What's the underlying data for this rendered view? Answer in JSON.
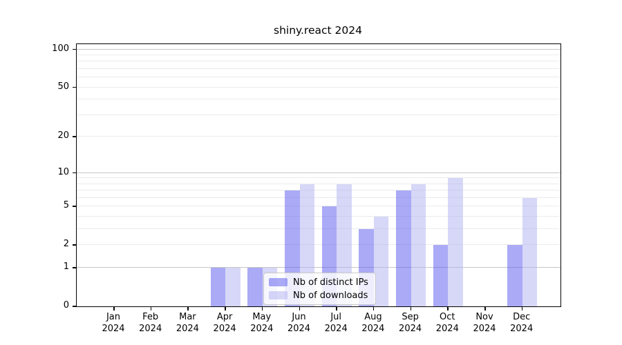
{
  "title": "shiny.react 2024",
  "chart_data": {
    "type": "bar",
    "title": "shiny.react 2024",
    "xlabel": "",
    "ylabel": "",
    "y_scale": "log1p",
    "ylim": [
      0,
      110
    ],
    "categories": [
      "Jan",
      "Feb",
      "Mar",
      "Apr",
      "May",
      "Jun",
      "Jul",
      "Aug",
      "Sep",
      "Oct",
      "Nov",
      "Dec"
    ],
    "category_year": "2024",
    "series": [
      {
        "name": "Nb of distinct IPs",
        "color": "rgba(85,85,238,0.5)",
        "color_hex_on_white": "#a9a9f3",
        "values": [
          0,
          0,
          0,
          1,
          1,
          7,
          5,
          3,
          7,
          2,
          0,
          2
        ]
      },
      {
        "name": "Nb of downloads",
        "color": "rgba(175,175,242,0.5)",
        "color_hex_on_white": "#d8d8f7",
        "values": [
          0,
          0,
          0,
          1,
          1,
          8,
          8,
          4,
          8,
          9,
          0,
          6
        ]
      }
    ],
    "yticks": [
      0,
      1,
      2,
      5,
      10,
      20,
      50,
      100
    ],
    "grid": {
      "major_lines": [
        1,
        10,
        100
      ],
      "minor_lines": [
        2,
        3,
        4,
        5,
        6,
        7,
        8,
        9,
        20,
        30,
        40,
        50,
        60,
        70,
        80,
        90
      ],
      "major_color": "#c6c6c6",
      "minor_color": "#ebebeb"
    },
    "legend_position": "lower center"
  }
}
